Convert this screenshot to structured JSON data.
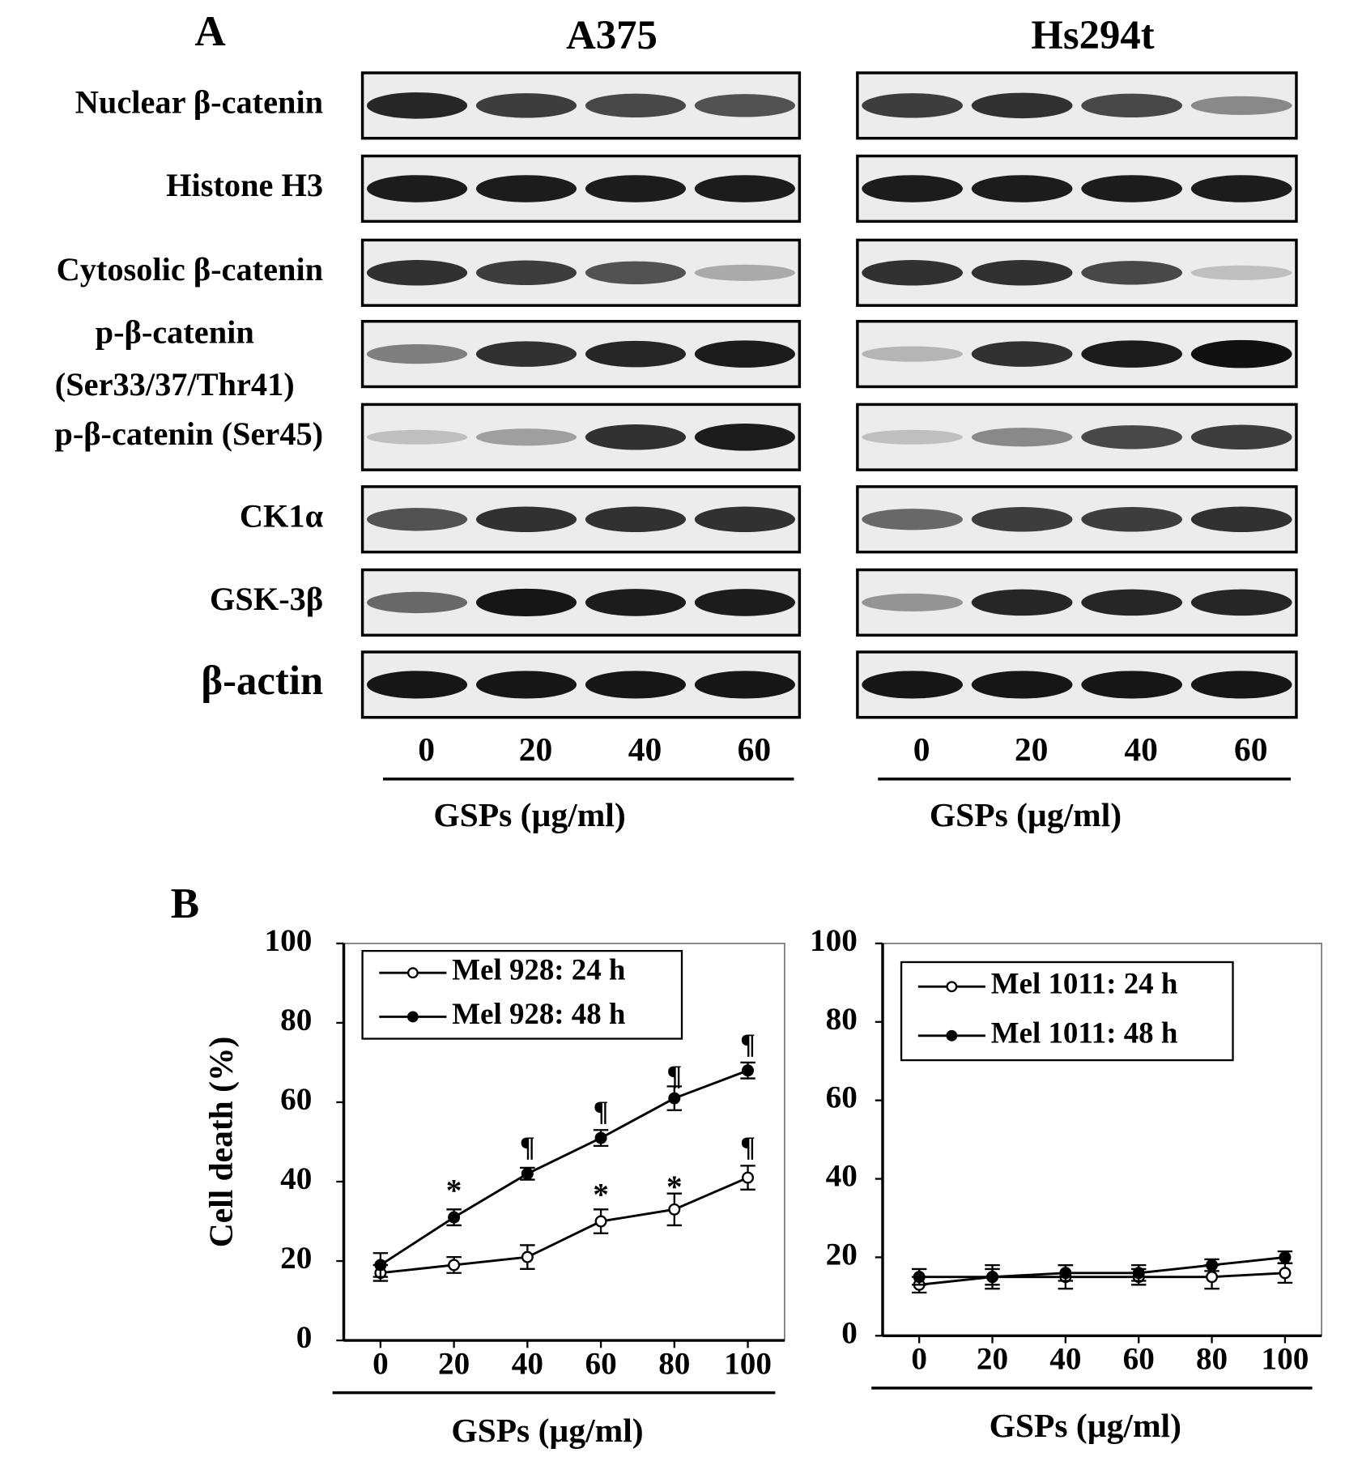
{
  "panel_a": {
    "label": "A",
    "proteins": [
      [
        "Nuclear β-catenin"
      ],
      [
        "Histone H3"
      ],
      [
        "Cytosolic β-catenin"
      ],
      [
        "p-β-catenin",
        "(Ser33/37/Thr41)"
      ],
      [
        "p-β-catenin (Ser45)"
      ],
      [
        "CK1α"
      ],
      [
        "GSK-3β"
      ],
      [
        "β-actin"
      ]
    ],
    "blots": [
      {
        "cell_line": "A375",
        "doses": [
          0,
          20,
          40,
          60
        ],
        "x_label": "GSPs (µg/ml)"
      },
      {
        "cell_line": "Hs294t",
        "doses": [
          0,
          20,
          40,
          60
        ],
        "x_label": "GSPs (µg/ml)"
      }
    ]
  },
  "panel_b_label": "B",
  "chart_data": [
    {
      "type": "line",
      "y_label": "Cell death (%)",
      "x_label": "GSPs (µg/ml)",
      "x": [
        0,
        20,
        40,
        60,
        80,
        100
      ],
      "xlim": [
        -10,
        110
      ],
      "xticks": [
        0,
        20,
        40,
        60,
        80,
        100
      ],
      "ylim": [
        0,
        100
      ],
      "yticks": [
        0,
        20,
        40,
        60,
        80,
        100
      ],
      "grid": false,
      "legend": "upper left",
      "series": [
        {
          "name": "Mel 928: 24 h",
          "color": "#000000",
          "marker_fill": "#ffffff",
          "values": [
            17,
            19,
            21,
            30,
            33,
            41
          ],
          "errors": [
            2,
            2,
            3,
            3,
            4,
            3
          ]
        },
        {
          "name": "Mel 928: 48 h",
          "color": "#000000",
          "marker_fill": "#000000",
          "values": [
            19,
            31,
            42,
            51,
            61,
            68
          ],
          "errors": [
            3,
            2,
            1.5,
            2,
            3,
            2
          ]
        }
      ],
      "annotations": [
        {
          "text": "*",
          "x": 20,
          "y": 37
        },
        {
          "text": "*",
          "x": 60,
          "y": 36
        },
        {
          "text": "*",
          "x": 80,
          "y": 38
        },
        {
          "text": "¶",
          "x": 40,
          "y": 48
        },
        {
          "text": "¶",
          "x": 60,
          "y": 57
        },
        {
          "text": "¶",
          "x": 80,
          "y": 66
        },
        {
          "text": "¶",
          "x": 100,
          "y": 74
        },
        {
          "text": "¶",
          "x": 100,
          "y": 48
        }
      ]
    },
    {
      "type": "line",
      "x_label": "GSPs (µg/ml)",
      "x": [
        0,
        20,
        40,
        60,
        80,
        100
      ],
      "xlim": [
        -10,
        110
      ],
      "xticks": [
        0,
        20,
        40,
        60,
        80,
        100
      ],
      "ylim": [
        0,
        100
      ],
      "yticks": [
        0,
        20,
        40,
        60,
        80,
        100
      ],
      "grid": false,
      "legend": "upper left",
      "series": [
        {
          "name": "Mel 1011: 24 h",
          "color": "#000000",
          "marker_fill": "#ffffff",
          "values": [
            13,
            15,
            15,
            15,
            15,
            16
          ],
          "errors": [
            2,
            2,
            3,
            2,
            3,
            2.5
          ]
        },
        {
          "name": "Mel 1011: 48 h",
          "color": "#000000",
          "marker_fill": "#000000",
          "values": [
            15,
            15,
            16,
            16,
            18,
            20
          ],
          "errors": [
            2,
            3,
            2,
            2,
            1.5,
            1.5
          ]
        }
      ]
    }
  ]
}
